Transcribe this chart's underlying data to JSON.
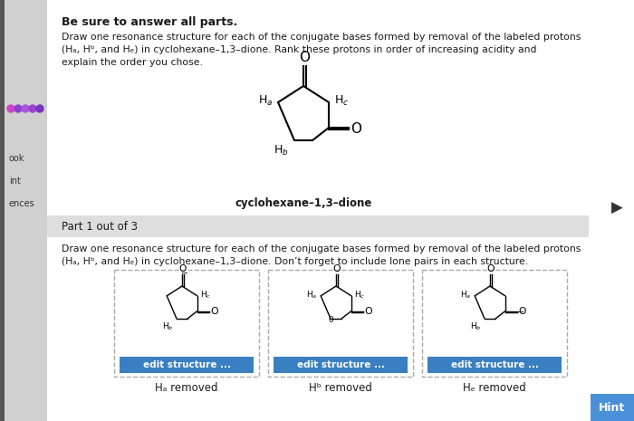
{
  "bg_color": "#e8e8e8",
  "page_bg": "#f5f5f5",
  "content_bg": "#ffffff",
  "title_bold": "Be sure to answer all parts.",
  "paragraph1_line1": "Draw one resonance structure for each of the conjugate bases formed by removal of the labeled protons",
  "paragraph1_line2": "(Hₐ, Hᵇ, and Hₑ) in cyclohexane–1,3–dione. Rank these protons in order of increasing acidity and",
  "paragraph1_line3": "explain the order you chose.",
  "molecule_label": "cyclohexane–1,3–dione",
  "part_label": "Part 1 out of 3",
  "paragraph2_line1": "Draw one resonance structure for each of the conjugate bases formed by removal of the labeled protons",
  "paragraph2_line2": "(Hₐ, Hᵇ, and Hₑ) in cyclohexane–1,3–dione. Don’t forget to include lone pairs in each structure.",
  "panel_labels": [
    "Hₐ removed",
    "Hᵇ removed",
    "Hₑ removed"
  ],
  "button_color": "#3a7fc1",
  "button_text_color": "#ffffff",
  "button_label": "edit structure ...",
  "hint_label": "Hint",
  "hint_bg": "#4a90d9",
  "sidebar_bg": "#d0d0d0",
  "sidebar_texts": [
    "ook",
    "int",
    "ences"
  ],
  "sidebar_dot_colors": [
    "#cc44cc",
    "#8844cc",
    "#aa55dd",
    "#9944cc",
    "#7733bb"
  ],
  "part_bar_color": "#dedede",
  "text_color": "#1a1a1a",
  "panel_border_color": "#aaaaaa"
}
